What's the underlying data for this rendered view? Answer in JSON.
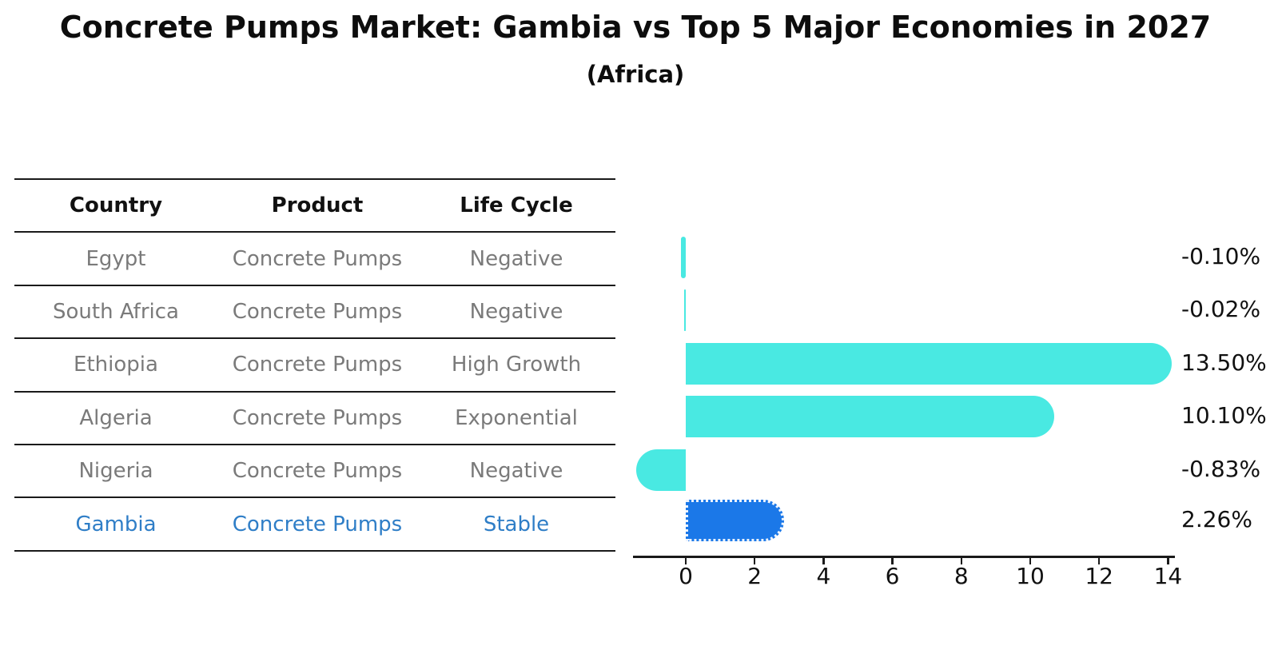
{
  "title": "Concrete Pumps Market: Gambia vs Top 5 Major Economies in 2027",
  "subtitle": "(Africa)",
  "table": {
    "headers": [
      "Country",
      "Product",
      "Life Cycle"
    ],
    "rows": [
      {
        "country": "Egypt",
        "product": "Concrete Pumps",
        "life_cycle": "Negative",
        "highlight": false
      },
      {
        "country": "South Africa",
        "product": "Concrete Pumps",
        "life_cycle": "Negative",
        "highlight": false
      },
      {
        "country": "Ethiopia",
        "product": "Concrete Pumps",
        "life_cycle": "High Growth",
        "highlight": false
      },
      {
        "country": "Algeria",
        "product": "Concrete Pumps",
        "life_cycle": "Exponential",
        "highlight": false
      },
      {
        "country": "Nigeria",
        "product": "Concrete Pumps",
        "life_cycle": "Negative",
        "highlight": false
      },
      {
        "country": "Gambia",
        "product": "Concrete Pumps",
        "life_cycle": "Stable",
        "highlight": true
      }
    ]
  },
  "chart_data": {
    "type": "bar",
    "orientation": "horizontal",
    "title": "Concrete Pumps Market: Gambia vs Top 5 Major Economies in 2027",
    "subtitle": "(Africa)",
    "categories": [
      "Egypt",
      "South Africa",
      "Ethiopia",
      "Algeria",
      "Nigeria",
      "Gambia"
    ],
    "values": [
      -0.1,
      -0.02,
      13.5,
      10.1,
      -0.83,
      2.26
    ],
    "labels": [
      "-0.10%",
      "-0.02%",
      "13.50%",
      "10.10%",
      "-0.83%",
      "2.26%"
    ],
    "x_ticks": [
      "0",
      "2",
      "4",
      "6",
      "8",
      "10",
      "12",
      "14"
    ],
    "x_tick_values": [
      0,
      2,
      4,
      6,
      8,
      10,
      12,
      14
    ],
    "xlim": [
      -1.6,
      14.2
    ],
    "grid": false,
    "legend": false,
    "bar_color": "#49E9E2",
    "highlight_color": "#1B78E8",
    "highlight_index": 5
  },
  "colors": {
    "background": "#FFFFFF",
    "bar_cyan": "#49E9E2",
    "bar_blue": "#1B78E8",
    "highlight_text": "#2F7EC7",
    "table_text": "#7A7A7A",
    "axis": "#1A1A1A"
  }
}
